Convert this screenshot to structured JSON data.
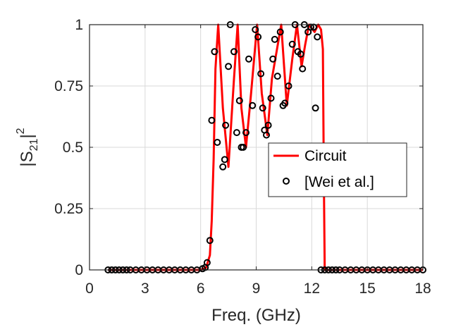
{
  "chart_data": {
    "type": "line",
    "title": "",
    "xlabel": "Freq. (GHz)",
    "ylabel_main": "|S",
    "ylabel_sub": "21",
    "ylabel_tail": "|",
    "ylabel_sup": "2",
    "xlim": [
      0,
      18
    ],
    "ylim": [
      0,
      1
    ],
    "xticks": [
      0,
      3,
      6,
      9,
      12,
      15,
      18
    ],
    "yticks": [
      0,
      0.25,
      0.5,
      0.75,
      1
    ],
    "xtick_labels": [
      "0",
      "3",
      "6",
      "9",
      "12",
      "15",
      "18"
    ],
    "ytick_labels": [
      "0",
      "0.25",
      "0.5",
      "0.75",
      "1"
    ],
    "grid": true,
    "legend_position": "right-center",
    "colors": {
      "circuit": "#ff0000",
      "markers": "#000000",
      "axes": "#262626",
      "grid": "#d9d9d9"
    },
    "series": [
      {
        "name": "Circuit",
        "style": "line",
        "x": [
          1.0,
          6.0,
          6.3,
          6.5,
          6.6,
          6.7,
          6.8,
          6.95,
          7.2,
          7.5,
          7.8,
          8.0,
          8.2,
          8.45,
          8.7,
          9.05,
          9.3,
          9.6,
          9.85,
          10.35,
          10.65,
          10.95,
          11.2,
          11.45,
          11.65,
          11.85,
          12.15,
          12.35,
          12.5,
          12.6,
          12.65,
          12.7,
          13.0,
          18.0
        ],
        "y": [
          0.0,
          0.0,
          0.01,
          0.06,
          0.2,
          0.45,
          0.82,
          1.0,
          0.66,
          0.42,
          0.78,
          1.0,
          0.66,
          0.5,
          0.7,
          1.0,
          0.72,
          0.55,
          0.78,
          1.0,
          0.67,
          0.86,
          1.0,
          0.83,
          0.92,
          1.0,
          0.97,
          1.0,
          0.98,
          0.9,
          0.4,
          0.0,
          0.0,
          0.0
        ]
      },
      {
        "name": "[Wei et al.]",
        "style": "markers",
        "points": [
          [
            1.0,
            0
          ],
          [
            1.2,
            0
          ],
          [
            1.4,
            0
          ],
          [
            1.6,
            0
          ],
          [
            1.8,
            0
          ],
          [
            2.0,
            0
          ],
          [
            2.2,
            0
          ],
          [
            2.5,
            0
          ],
          [
            2.8,
            0
          ],
          [
            3.1,
            0
          ],
          [
            3.4,
            0
          ],
          [
            3.7,
            0
          ],
          [
            4.0,
            0
          ],
          [
            4.3,
            0
          ],
          [
            4.6,
            0
          ],
          [
            4.9,
            0
          ],
          [
            5.2,
            0
          ],
          [
            5.5,
            0
          ],
          [
            5.8,
            0
          ],
          [
            6.1,
            0.005
          ],
          [
            6.25,
            0.01
          ],
          [
            6.35,
            0.03
          ],
          [
            6.5,
            0.12
          ],
          [
            6.6,
            0.61
          ],
          [
            6.75,
            0.89
          ],
          [
            6.9,
            0.52
          ],
          [
            7.2,
            0.42
          ],
          [
            7.3,
            0.45
          ],
          [
            7.35,
            0.59
          ],
          [
            7.5,
            0.83
          ],
          [
            7.6,
            1.0
          ],
          [
            7.8,
            0.89
          ],
          [
            7.95,
            0.56
          ],
          [
            8.1,
            0.69
          ],
          [
            8.2,
            0.5
          ],
          [
            8.3,
            0.5
          ],
          [
            8.45,
            0.56
          ],
          [
            8.6,
            0.86
          ],
          [
            8.8,
            0.67
          ],
          [
            8.95,
            0.98
          ],
          [
            9.1,
            0.95
          ],
          [
            9.25,
            0.8
          ],
          [
            9.35,
            0.66
          ],
          [
            9.45,
            0.57
          ],
          [
            9.55,
            0.55
          ],
          [
            9.65,
            0.59
          ],
          [
            9.8,
            0.7
          ],
          [
            9.9,
            0.86
          ],
          [
            10.0,
            0.94
          ],
          [
            10.15,
            0.79
          ],
          [
            10.3,
            0.97
          ],
          [
            10.45,
            0.67
          ],
          [
            10.55,
            0.68
          ],
          [
            10.75,
            0.75
          ],
          [
            10.95,
            0.92
          ],
          [
            11.1,
            1.0
          ],
          [
            11.25,
            0.89
          ],
          [
            11.4,
            0.88
          ],
          [
            11.5,
            0.82
          ],
          [
            11.6,
            1.0
          ],
          [
            11.8,
            0.97
          ],
          [
            11.95,
            0.99
          ],
          [
            12.1,
            0.99
          ],
          [
            12.2,
            0.66
          ],
          [
            12.3,
            0.95
          ],
          [
            12.5,
            0
          ],
          [
            12.7,
            0
          ],
          [
            12.9,
            0
          ],
          [
            13.1,
            0
          ],
          [
            13.3,
            0
          ],
          [
            13.5,
            0
          ],
          [
            13.8,
            0
          ],
          [
            14.1,
            0
          ],
          [
            14.4,
            0
          ],
          [
            14.7,
            0
          ],
          [
            15.0,
            0
          ],
          [
            15.3,
            0
          ],
          [
            15.6,
            0
          ],
          [
            15.9,
            0
          ],
          [
            16.2,
            0
          ],
          [
            16.5,
            0
          ],
          [
            16.8,
            0
          ],
          [
            17.1,
            0
          ],
          [
            17.4,
            0
          ],
          [
            17.7,
            0
          ],
          [
            18.0,
            0
          ]
        ]
      }
    ]
  }
}
